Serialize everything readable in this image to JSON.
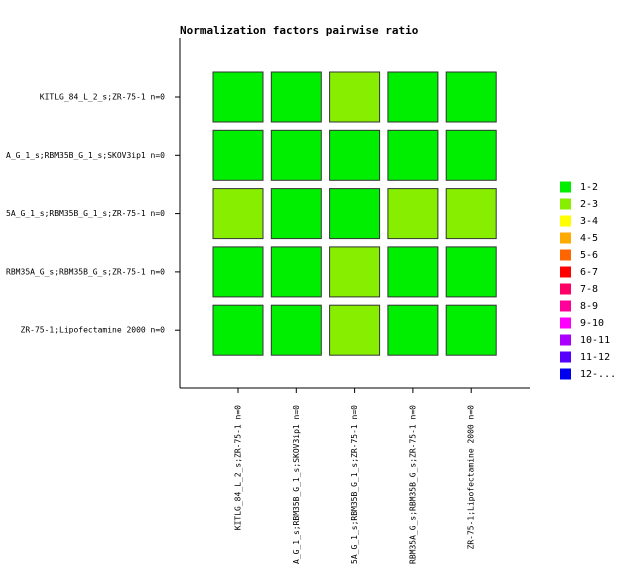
{
  "chart_data": {
    "type": "heatmap",
    "title": "Normalization factors pairwise ratio",
    "rows": [
      "KITLG_84_L_2_s;ZR-75-1 n=0",
      "A_G_1_s;RBM35B_G_1_s;SKOV3ip1 n=0",
      "5A_G_1_s;RBM35B_G_1_s;ZR-75-1 n=0",
      "RBM35A_G_s;RBM35B_G_s;ZR-75-1 n=0",
      "ZR-75-1;Lipofectamine 2000 n=0"
    ],
    "columns": [
      "KITLG_84_L_2_s;ZR-75-1 n=0",
      "A_G_1_s;RBM35B_G_1_s;SKOV3ip1 n=0",
      "5A_G_1_s;RBM35B_G_1_s;ZR-75-1 n=0",
      "RBM35A_G_s;RBM35B_G_s;ZR-75-1 n=0",
      "ZR-75-1;Lipofectamine 2000 n=0"
    ],
    "values": [
      [
        "1-2",
        "1-2",
        "2-3",
        "1-2",
        "1-2"
      ],
      [
        "1-2",
        "1-2",
        "1-2",
        "1-2",
        "1-2"
      ],
      [
        "2-3",
        "1-2",
        "1-2",
        "2-3",
        "2-3"
      ],
      [
        "1-2",
        "1-2",
        "2-3",
        "1-2",
        "1-2"
      ],
      [
        "1-2",
        "1-2",
        "2-3",
        "1-2",
        "1-2"
      ]
    ],
    "legend": [
      {
        "label": "1-2",
        "color": "#00ee00"
      },
      {
        "label": "2-3",
        "color": "#88ee00"
      },
      {
        "label": "3-4",
        "color": "#ffff00"
      },
      {
        "label": "4-5",
        "color": "#ffaa00"
      },
      {
        "label": "5-6",
        "color": "#ff6600"
      },
      {
        "label": "6-7",
        "color": "#ff0000"
      },
      {
        "label": "7-8",
        "color": "#ff0066"
      },
      {
        "label": "8-9",
        "color": "#ff0099"
      },
      {
        "label": "9-10",
        "color": "#ff00ff"
      },
      {
        "label": "10-11",
        "color": "#aa00ff"
      },
      {
        "label": "11-12",
        "color": "#5500ff"
      },
      {
        "label": "12-...",
        "color": "#0000ee"
      }
    ]
  }
}
